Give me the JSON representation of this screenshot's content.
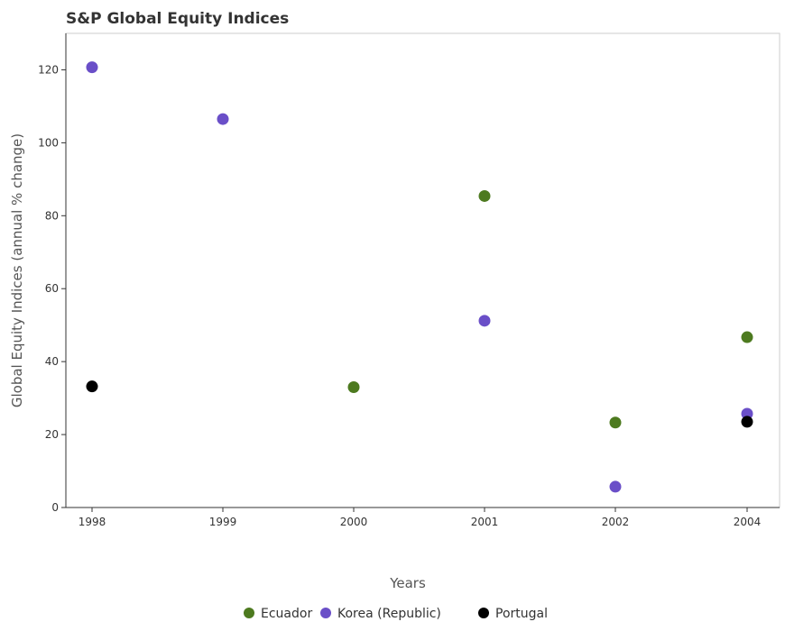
{
  "chart_data": {
    "type": "scatter",
    "title": "S&P Global Equity Indices",
    "xlabel": "Years",
    "ylabel": "Global Equity Indices (annual % change)",
    "categories": [
      "1998",
      "1999",
      "2000",
      "2001",
      "2002",
      "2004"
    ],
    "ylim": [
      0,
      130
    ],
    "yticks": [
      0,
      20,
      40,
      60,
      80,
      100,
      120
    ],
    "grid": false,
    "legend_position": "bottom",
    "series": [
      {
        "name": "Ecuador",
        "color": "#4d7a1f",
        "values": [
          null,
          null,
          33.0,
          85.4,
          23.3,
          46.7
        ]
      },
      {
        "name": "Korea (Republic)",
        "color": "#6a4fc8",
        "values": [
          120.7,
          106.5,
          null,
          51.2,
          5.7,
          25.7
        ]
      },
      {
        "name": "Portugal",
        "color": "#000000",
        "values": [
          33.2,
          null,
          null,
          null,
          null,
          23.5
        ]
      }
    ]
  }
}
